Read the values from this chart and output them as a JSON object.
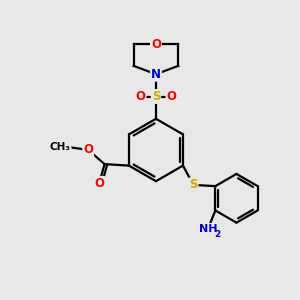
{
  "bg_color": "#e8e8e8",
  "atom_colors": {
    "C": "#000000",
    "N": "#0000cd",
    "O": "#ff0000",
    "S": "#ccaa00",
    "H": "#808080"
  },
  "bond_color": "#000000",
  "bond_width": 1.6,
  "font_size_atoms": 8.5
}
